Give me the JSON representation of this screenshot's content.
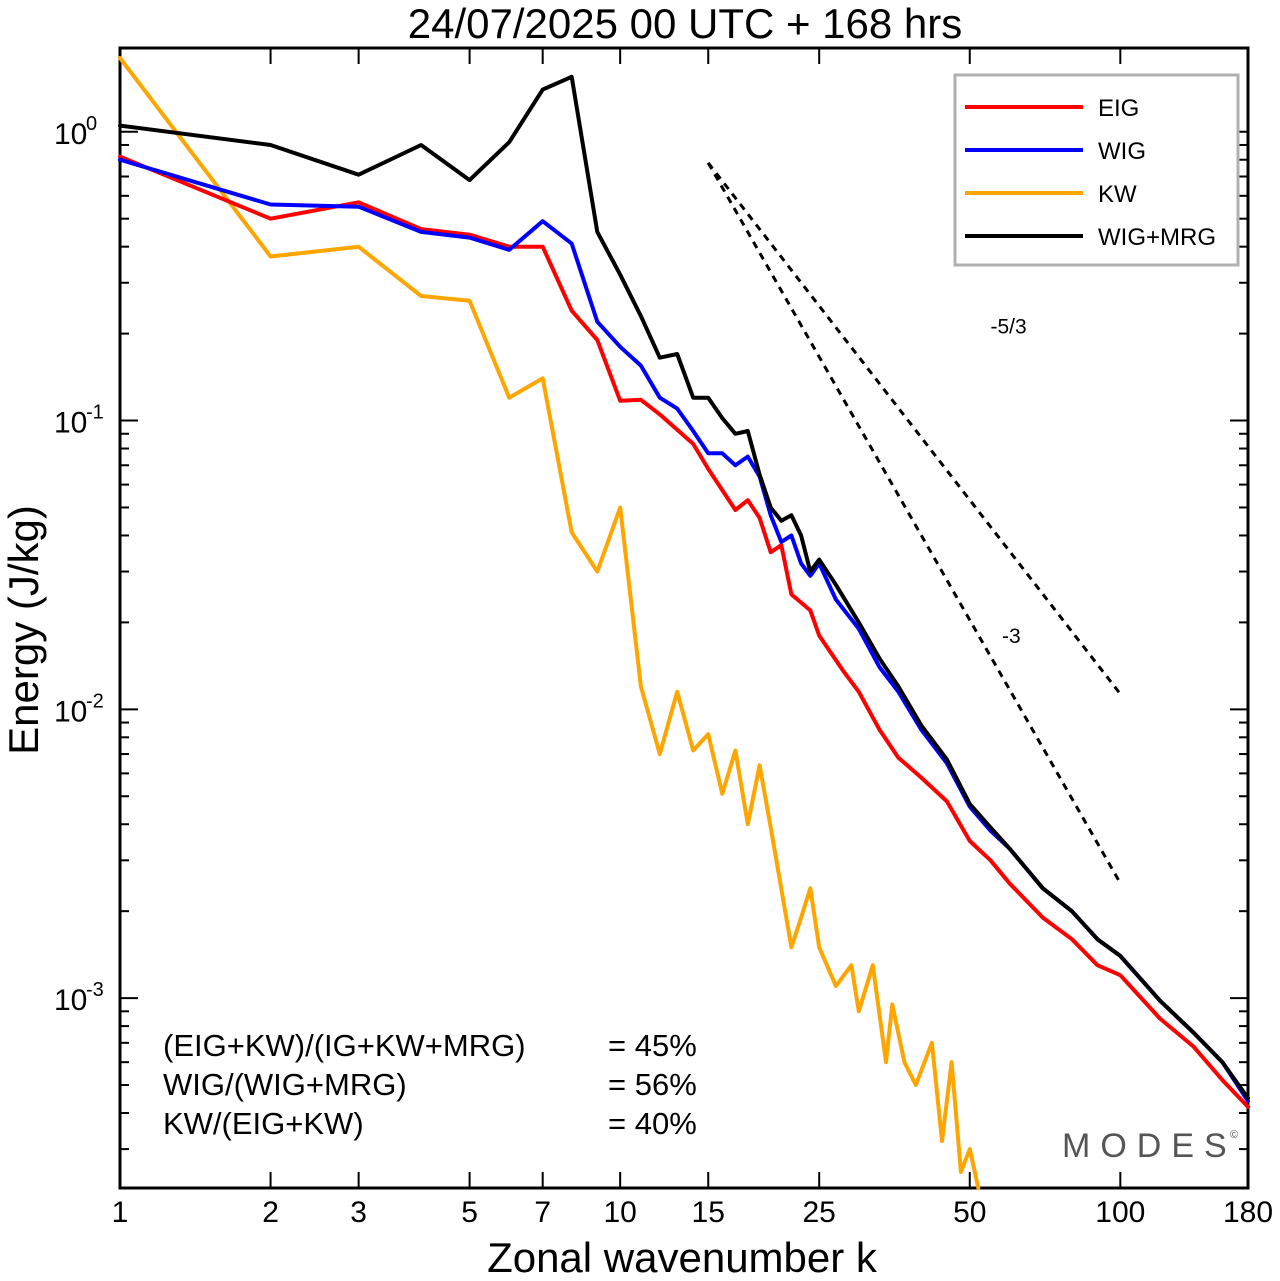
{
  "chart_data": {
    "type": "line",
    "title": "24/07/2025  00 UTC  + 168 hrs",
    "xlabel": "Zonal wavenumber k",
    "ylabel": "Energy (J/kg)",
    "xscale": "log",
    "yscale": "log",
    "xlim": [
      1,
      180
    ],
    "ylim": [
      0.00022,
      1.95
    ],
    "xticks": [
      {
        "value": 1,
        "label": "1"
      },
      {
        "value": 2,
        "label": "2"
      },
      {
        "value": 3,
        "label": "3"
      },
      {
        "value": 5,
        "label": "5"
      },
      {
        "value": 7,
        "label": "7"
      },
      {
        "value": 10,
        "label": "10"
      },
      {
        "value": 15,
        "label": "15"
      },
      {
        "value": 25,
        "label": "25"
      },
      {
        "value": 50,
        "label": "50"
      },
      {
        "value": 100,
        "label": "100"
      },
      {
        "value": 180,
        "label": "180"
      }
    ],
    "yticks": [
      {
        "value": 1,
        "base": "10",
        "exp": "0"
      },
      {
        "value": 0.1,
        "base": "10",
        "exp": "-1"
      },
      {
        "value": 0.01,
        "base": "10",
        "exp": "-2"
      },
      {
        "value": 0.001,
        "base": "10",
        "exp": "-3"
      }
    ],
    "legend_position": "top-right",
    "series": [
      {
        "name": "EIG",
        "color": "#ff0000",
        "points": [
          [
            1,
            0.82
          ],
          [
            2,
            0.5
          ],
          [
            3,
            0.57
          ],
          [
            4,
            0.46
          ],
          [
            5,
            0.44
          ],
          [
            6,
            0.4
          ],
          [
            7,
            0.4
          ],
          [
            8,
            0.24
          ],
          [
            9,
            0.19
          ],
          [
            10,
            0.117
          ],
          [
            11,
            0.118
          ],
          [
            12,
            0.105
          ],
          [
            14,
            0.083
          ],
          [
            15,
            0.068
          ],
          [
            17,
            0.049
          ],
          [
            18,
            0.053
          ],
          [
            19,
            0.046
          ],
          [
            20,
            0.035
          ],
          [
            21,
            0.037
          ],
          [
            22,
            0.025
          ],
          [
            24,
            0.022
          ],
          [
            25,
            0.018
          ],
          [
            28,
            0.0135
          ],
          [
            30,
            0.0115
          ],
          [
            33,
            0.0085
          ],
          [
            36,
            0.0068
          ],
          [
            40,
            0.0058
          ],
          [
            45,
            0.0048
          ],
          [
            50,
            0.0035
          ],
          [
            55,
            0.003
          ],
          [
            60,
            0.0025
          ],
          [
            70,
            0.0019
          ],
          [
            80,
            0.0016
          ],
          [
            90,
            0.0013
          ],
          [
            100,
            0.0012
          ],
          [
            120,
            0.00085
          ],
          [
            140,
            0.00068
          ],
          [
            160,
            0.00052
          ],
          [
            180,
            0.00042
          ]
        ]
      },
      {
        "name": "WIG",
        "color": "#0000ff",
        "points": [
          [
            1,
            0.8
          ],
          [
            2,
            0.56
          ],
          [
            3,
            0.55
          ],
          [
            4,
            0.45
          ],
          [
            5,
            0.43
          ],
          [
            6,
            0.39
          ],
          [
            7,
            0.49
          ],
          [
            8,
            0.41
          ],
          [
            9,
            0.22
          ],
          [
            10,
            0.18
          ],
          [
            11,
            0.155
          ],
          [
            12,
            0.12
          ],
          [
            13,
            0.11
          ],
          [
            14,
            0.092
          ],
          [
            15,
            0.077
          ],
          [
            16,
            0.077
          ],
          [
            17,
            0.07
          ],
          [
            18,
            0.075
          ],
          [
            19,
            0.064
          ],
          [
            20,
            0.047
          ],
          [
            21,
            0.038
          ],
          [
            22,
            0.04
          ],
          [
            23,
            0.032
          ],
          [
            24,
            0.029
          ],
          [
            25,
            0.032
          ],
          [
            27,
            0.024
          ],
          [
            30,
            0.019
          ],
          [
            33,
            0.014
          ],
          [
            36,
            0.0115
          ],
          [
            40,
            0.0085
          ],
          [
            45,
            0.0065
          ],
          [
            50,
            0.0046
          ],
          [
            55,
            0.0038
          ],
          [
            60,
            0.0033
          ],
          [
            70,
            0.0024
          ],
          [
            80,
            0.002
          ],
          [
            90,
            0.0016
          ],
          [
            100,
            0.0014
          ],
          [
            120,
            0.00098
          ],
          [
            140,
            0.00076
          ],
          [
            160,
            0.0006
          ],
          [
            180,
            0.00044
          ]
        ]
      },
      {
        "name": "KW",
        "color": "#ffa500",
        "points": [
          [
            1,
            1.8
          ],
          [
            2,
            0.37
          ],
          [
            3,
            0.4
          ],
          [
            4,
            0.27
          ],
          [
            5,
            0.26
          ],
          [
            6,
            0.12
          ],
          [
            7,
            0.14
          ],
          [
            8,
            0.041
          ],
          [
            9,
            0.03
          ],
          [
            10,
            0.05
          ],
          [
            11,
            0.012
          ],
          [
            12,
            0.007
          ],
          [
            13,
            0.0115
          ],
          [
            14,
            0.0072
          ],
          [
            15,
            0.0082
          ],
          [
            16,
            0.0051
          ],
          [
            17,
            0.0072
          ],
          [
            18,
            0.004
          ],
          [
            19,
            0.0064
          ],
          [
            20,
            0.0039
          ],
          [
            22,
            0.0015
          ],
          [
            23,
            0.0019
          ],
          [
            24,
            0.0024
          ],
          [
            25,
            0.0015
          ],
          [
            27,
            0.0011
          ],
          [
            29,
            0.0013
          ],
          [
            30,
            0.0009
          ],
          [
            32,
            0.0013
          ],
          [
            34,
            0.0006
          ],
          [
            35,
            0.00095
          ],
          [
            37,
            0.0006
          ],
          [
            39,
            0.0005
          ],
          [
            42,
            0.0007
          ],
          [
            44,
            0.00032
          ],
          [
            46,
            0.0006
          ],
          [
            48,
            0.00025
          ],
          [
            50,
            0.0003
          ],
          [
            52,
            0.00022
          ]
        ]
      },
      {
        "name": "WIG+MRG",
        "color": "#000000",
        "points": [
          [
            1,
            1.05
          ],
          [
            2,
            0.9
          ],
          [
            3,
            0.71
          ],
          [
            4,
            0.9
          ],
          [
            5,
            0.68
          ],
          [
            6,
            0.92
          ],
          [
            7,
            1.4
          ],
          [
            8,
            1.55
          ],
          [
            9,
            0.45
          ],
          [
            10,
            0.32
          ],
          [
            11,
            0.23
          ],
          [
            12,
            0.165
          ],
          [
            13,
            0.17
          ],
          [
            14,
            0.12
          ],
          [
            15,
            0.12
          ],
          [
            16,
            0.102
          ],
          [
            17,
            0.09
          ],
          [
            18,
            0.092
          ],
          [
            19,
            0.065
          ],
          [
            20,
            0.05
          ],
          [
            21,
            0.045
          ],
          [
            22,
            0.047
          ],
          [
            23,
            0.04
          ],
          [
            24,
            0.03
          ],
          [
            25,
            0.033
          ],
          [
            27,
            0.027
          ],
          [
            30,
            0.02
          ],
          [
            33,
            0.015
          ],
          [
            36,
            0.012
          ],
          [
            40,
            0.0088
          ],
          [
            45,
            0.0067
          ],
          [
            50,
            0.0047
          ],
          [
            55,
            0.0039
          ],
          [
            60,
            0.0033
          ],
          [
            70,
            0.0024
          ],
          [
            80,
            0.002
          ],
          [
            90,
            0.0016
          ],
          [
            100,
            0.0014
          ],
          [
            120,
            0.00098
          ],
          [
            140,
            0.00076
          ],
          [
            160,
            0.0006
          ],
          [
            180,
            0.00045
          ]
        ]
      }
    ],
    "reference_lines": [
      {
        "label": "-5/3",
        "slope": "-5/3",
        "from": [
          15,
          0.78
        ],
        "to": [
          100,
          0.0113
        ],
        "label_at": [
          55,
          0.2
        ]
      },
      {
        "label": "-3",
        "slope": "-3",
        "from": [
          15,
          0.78
        ],
        "to": [
          100,
          0.0025
        ],
        "label_at": [
          58,
          0.017
        ]
      }
    ],
    "stats": [
      {
        "label": "(EIG+KW)/(IG+KW+MRG)",
        "value": "= 45%"
      },
      {
        "label": "WIG/(WIG+MRG)",
        "value": "= 56%"
      },
      {
        "label": "KW/(EIG+KW)",
        "value": "= 40%"
      }
    ],
    "brand": "MODES",
    "brand_mark": "©"
  }
}
